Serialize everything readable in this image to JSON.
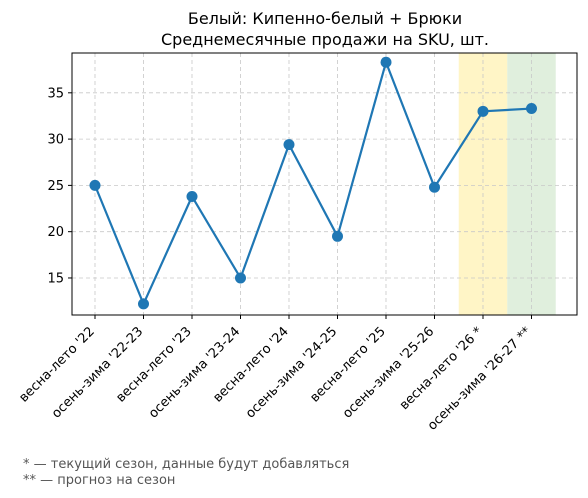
{
  "chart_data": {
    "type": "line",
    "title": "Белый: Кипенно-белый + Брюки",
    "subtitle": "Среднемесячные продажи на SKU, шт.",
    "xlabel": "",
    "ylabel": "",
    "categories": [
      "весна-лето '22",
      "осень-зима '22-23",
      "весна-лето '23",
      "осень-зима '23-24",
      "весна-лето '24",
      "осень-зима '24-25",
      "весна-лето '25",
      "осень-зима '25-26",
      "весна-лето '26 *",
      "осень-зима '26-27 **"
    ],
    "values": [
      25.0,
      12.2,
      23.8,
      15.0,
      29.4,
      19.5,
      38.3,
      24.8,
      33.0,
      33.3
    ],
    "ylim": [
      11,
      39.3
    ],
    "yticks": [
      15,
      20,
      25,
      30,
      35
    ],
    "grid": true,
    "line_color": "#1f77b4",
    "highlights": [
      {
        "category_index": 8,
        "color": "#fff2b3",
        "meaning": "current season"
      },
      {
        "category_index": 9,
        "color": "#d5ead2",
        "meaning": "forecast"
      }
    ]
  },
  "footnotes": [
    "* — текущий сезон, данные будут добавляться",
    "** — прогноз на сезон"
  ]
}
